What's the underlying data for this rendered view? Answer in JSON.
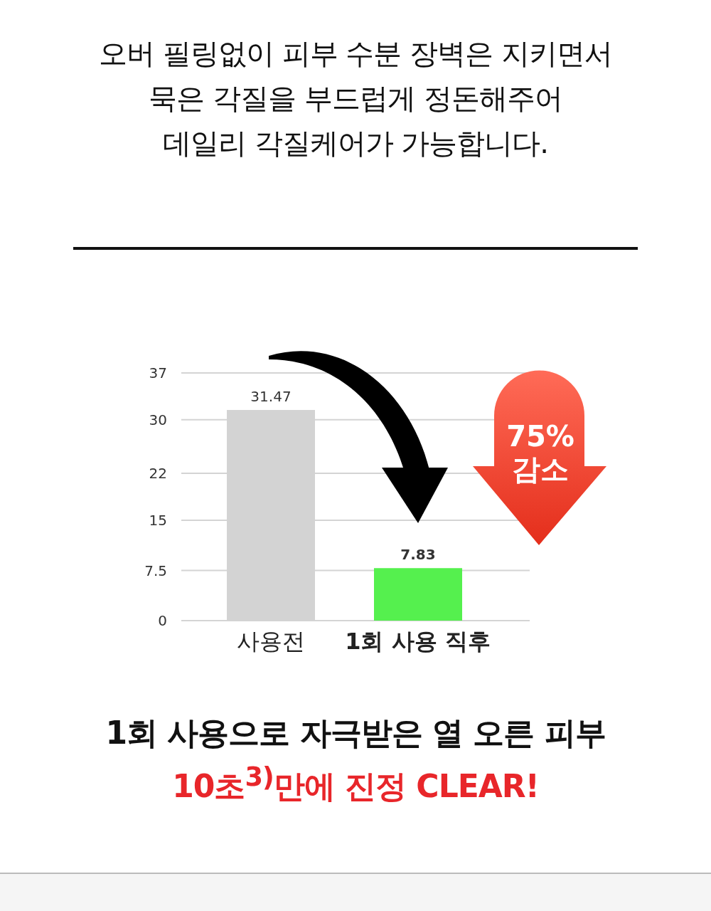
{
  "chart_data": {
    "type": "bar",
    "title": "오버 필링없이 피부 수분 장벽은 지키면서\n묵은 각질을 부드럽게 정돈해주어\n데일리 각질케어가 가능합니다.",
    "categories": [
      "사용전",
      "1회 사용 직후"
    ],
    "values": [
      31.47,
      7.83
    ],
    "colors": [
      "#d3d3d3",
      "#55f04e"
    ],
    "ylim": [
      0,
      37
    ],
    "yticks": [
      0,
      7.5,
      15,
      22,
      30,
      37
    ],
    "grid": "y",
    "data_labels": true,
    "annotations": [
      "75%\n감소",
      "1회 사용으로 자극받은 열 오른 피부",
      "10초$^{3)}$만에 진정 CLEAR!"
    ]
  }
}
